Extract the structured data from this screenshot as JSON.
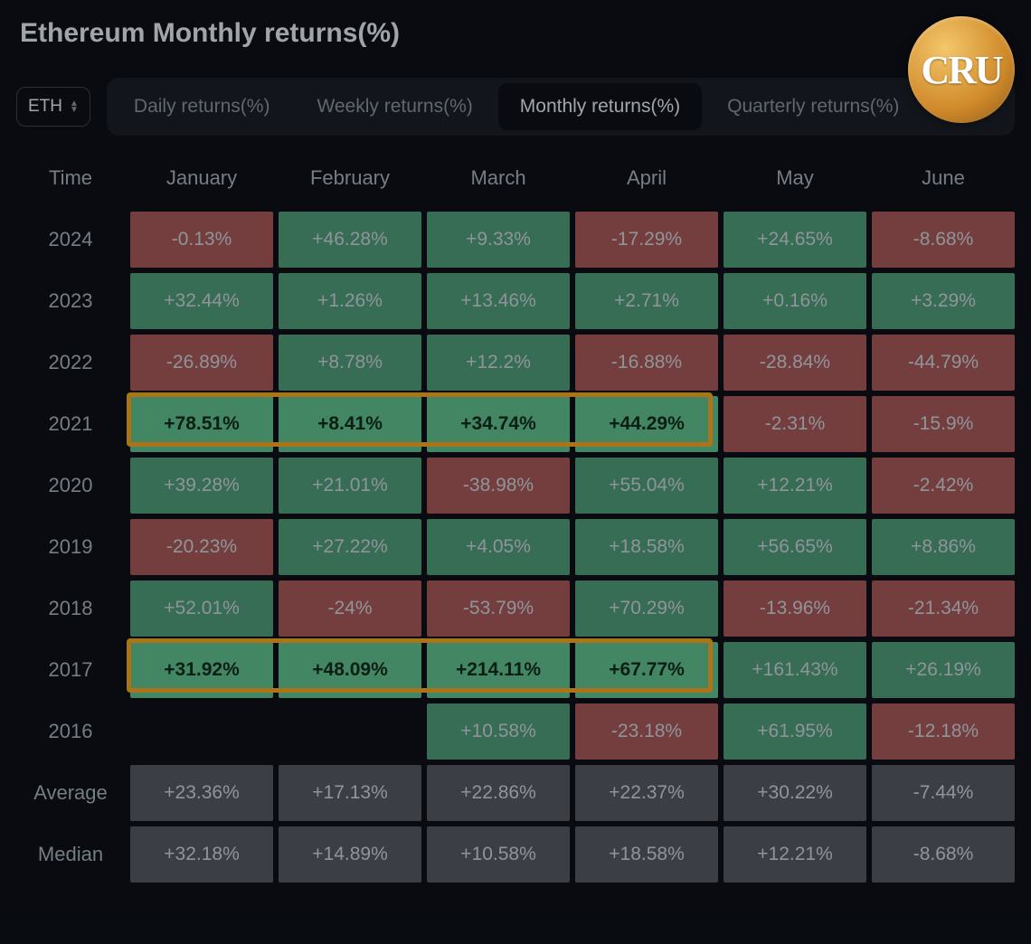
{
  "title": "Ethereum Monthly returns(%)",
  "watermark_text": "CRU",
  "selector": {
    "label": "ETH"
  },
  "tabs": [
    {
      "label": "Daily returns(%)",
      "active": false
    },
    {
      "label": "Weekly returns(%)",
      "active": false
    },
    {
      "label": "Monthly returns(%)",
      "active": true
    },
    {
      "label": "Quarterly returns(%)",
      "active": false
    }
  ],
  "columns": [
    "Time",
    "January",
    "February",
    "March",
    "April",
    "May",
    "June"
  ],
  "colors": {
    "positive_bg": "#4f9b7a",
    "positive_bright_bg": "#5fc08f",
    "negative_bg": "#a85a5a",
    "summary_bg": "#555b63",
    "cell_text_muted": "#cdd5dd",
    "cell_text_bright": "#0f2b1f",
    "highlight_border": "#f5a623",
    "background": "#0d1117"
  },
  "rows": [
    {
      "label": "2024",
      "cells": [
        {
          "text": "-0.13%",
          "bg": "#a85a5a",
          "fg": "#cdd5dd"
        },
        {
          "text": "+46.28%",
          "bg": "#4f9b7a",
          "fg": "#cdd5dd"
        },
        {
          "text": "+9.33%",
          "bg": "#4f9b7a",
          "fg": "#cdd5dd"
        },
        {
          "text": "-17.29%",
          "bg": "#a85a5a",
          "fg": "#cdd5dd"
        },
        {
          "text": "+24.65%",
          "bg": "#4f9b7a",
          "fg": "#cdd5dd"
        },
        {
          "text": "-8.68%",
          "bg": "#a85a5a",
          "fg": "#cdd5dd"
        }
      ]
    },
    {
      "label": "2023",
      "cells": [
        {
          "text": "+32.44%",
          "bg": "#4f9b7a",
          "fg": "#cdd5dd"
        },
        {
          "text": "+1.26%",
          "bg": "#4f9b7a",
          "fg": "#cdd5dd"
        },
        {
          "text": "+13.46%",
          "bg": "#4f9b7a",
          "fg": "#cdd5dd"
        },
        {
          "text": "+2.71%",
          "bg": "#4f9b7a",
          "fg": "#cdd5dd"
        },
        {
          "text": "+0.16%",
          "bg": "#4f9b7a",
          "fg": "#cdd5dd"
        },
        {
          "text": "+3.29%",
          "bg": "#4f9b7a",
          "fg": "#cdd5dd"
        }
      ]
    },
    {
      "label": "2022",
      "cells": [
        {
          "text": "-26.89%",
          "bg": "#a85a5a",
          "fg": "#cdd5dd"
        },
        {
          "text": "+8.78%",
          "bg": "#4f9b7a",
          "fg": "#cdd5dd"
        },
        {
          "text": "+12.2%",
          "bg": "#4f9b7a",
          "fg": "#cdd5dd"
        },
        {
          "text": "-16.88%",
          "bg": "#a85a5a",
          "fg": "#cdd5dd"
        },
        {
          "text": "-28.84%",
          "bg": "#a85a5a",
          "fg": "#cdd5dd"
        },
        {
          "text": "-44.79%",
          "bg": "#a85a5a",
          "fg": "#cdd5dd"
        }
      ]
    },
    {
      "label": "2021",
      "highlighted_cols": [
        0,
        1,
        2,
        3
      ],
      "cells": [
        {
          "text": "+78.51%",
          "bg": "#5fc08f",
          "fg": "#0f2b1f",
          "bold": true
        },
        {
          "text": "+8.41%",
          "bg": "#5fc08f",
          "fg": "#0f2b1f",
          "bold": true
        },
        {
          "text": "+34.74%",
          "bg": "#5fc08f",
          "fg": "#0f2b1f",
          "bold": true
        },
        {
          "text": "+44.29%",
          "bg": "#5fc08f",
          "fg": "#0f2b1f",
          "bold": true
        },
        {
          "text": "-2.31%",
          "bg": "#a85a5a",
          "fg": "#cdd5dd"
        },
        {
          "text": "-15.9%",
          "bg": "#a85a5a",
          "fg": "#cdd5dd"
        }
      ]
    },
    {
      "label": "2020",
      "cells": [
        {
          "text": "+39.28%",
          "bg": "#4f9b7a",
          "fg": "#cdd5dd"
        },
        {
          "text": "+21.01%",
          "bg": "#4f9b7a",
          "fg": "#cdd5dd"
        },
        {
          "text": "-38.98%",
          "bg": "#a85a5a",
          "fg": "#cdd5dd"
        },
        {
          "text": "+55.04%",
          "bg": "#4f9b7a",
          "fg": "#cdd5dd"
        },
        {
          "text": "+12.21%",
          "bg": "#4f9b7a",
          "fg": "#cdd5dd"
        },
        {
          "text": "-2.42%",
          "bg": "#a85a5a",
          "fg": "#cdd5dd"
        }
      ]
    },
    {
      "label": "2019",
      "cells": [
        {
          "text": "-20.23%",
          "bg": "#a85a5a",
          "fg": "#cdd5dd"
        },
        {
          "text": "+27.22%",
          "bg": "#4f9b7a",
          "fg": "#cdd5dd"
        },
        {
          "text": "+4.05%",
          "bg": "#4f9b7a",
          "fg": "#cdd5dd"
        },
        {
          "text": "+18.58%",
          "bg": "#4f9b7a",
          "fg": "#cdd5dd"
        },
        {
          "text": "+56.65%",
          "bg": "#4f9b7a",
          "fg": "#cdd5dd"
        },
        {
          "text": "+8.86%",
          "bg": "#4f9b7a",
          "fg": "#cdd5dd"
        }
      ]
    },
    {
      "label": "2018",
      "cells": [
        {
          "text": "+52.01%",
          "bg": "#4f9b7a",
          "fg": "#cdd5dd"
        },
        {
          "text": "-24%",
          "bg": "#a85a5a",
          "fg": "#cdd5dd"
        },
        {
          "text": "-53.79%",
          "bg": "#a85a5a",
          "fg": "#cdd5dd"
        },
        {
          "text": "+70.29%",
          "bg": "#4f9b7a",
          "fg": "#cdd5dd"
        },
        {
          "text": "-13.96%",
          "bg": "#a85a5a",
          "fg": "#cdd5dd"
        },
        {
          "text": "-21.34%",
          "bg": "#a85a5a",
          "fg": "#cdd5dd"
        }
      ]
    },
    {
      "label": "2017",
      "highlighted_cols": [
        0,
        1,
        2,
        3
      ],
      "cells": [
        {
          "text": "+31.92%",
          "bg": "#5fc08f",
          "fg": "#0f2b1f",
          "bold": true
        },
        {
          "text": "+48.09%",
          "bg": "#5fc08f",
          "fg": "#0f2b1f",
          "bold": true
        },
        {
          "text": "+214.11%",
          "bg": "#5fc08f",
          "fg": "#0f2b1f",
          "bold": true
        },
        {
          "text": "+67.77%",
          "bg": "#5fc08f",
          "fg": "#0f2b1f",
          "bold": true
        },
        {
          "text": "+161.43%",
          "bg": "#4f9b7a",
          "fg": "#cdd5dd"
        },
        {
          "text": "+26.19%",
          "bg": "#4f9b7a",
          "fg": "#cdd5dd"
        }
      ]
    },
    {
      "label": "2016",
      "cells": [
        {
          "text": "",
          "bg": "",
          "fg": ""
        },
        {
          "text": "",
          "bg": "",
          "fg": ""
        },
        {
          "text": "+10.58%",
          "bg": "#4f9b7a",
          "fg": "#cdd5dd"
        },
        {
          "text": "-23.18%",
          "bg": "#a85a5a",
          "fg": "#cdd5dd"
        },
        {
          "text": "+61.95%",
          "bg": "#4f9b7a",
          "fg": "#cdd5dd"
        },
        {
          "text": "-12.18%",
          "bg": "#a85a5a",
          "fg": "#cdd5dd"
        }
      ]
    },
    {
      "label": "Average",
      "cells": [
        {
          "text": "+23.36%",
          "bg": "#555b63",
          "fg": "#cdd5dd"
        },
        {
          "text": "+17.13%",
          "bg": "#555b63",
          "fg": "#cdd5dd"
        },
        {
          "text": "+22.86%",
          "bg": "#555b63",
          "fg": "#cdd5dd"
        },
        {
          "text": "+22.37%",
          "bg": "#555b63",
          "fg": "#cdd5dd"
        },
        {
          "text": "+30.22%",
          "bg": "#555b63",
          "fg": "#cdd5dd"
        },
        {
          "text": "-7.44%",
          "bg": "#555b63",
          "fg": "#cdd5dd"
        }
      ]
    },
    {
      "label": "Median",
      "cells": [
        {
          "text": "+32.18%",
          "bg": "#555b63",
          "fg": "#cdd5dd"
        },
        {
          "text": "+14.89%",
          "bg": "#555b63",
          "fg": "#cdd5dd"
        },
        {
          "text": "+10.58%",
          "bg": "#555b63",
          "fg": "#cdd5dd"
        },
        {
          "text": "+18.58%",
          "bg": "#555b63",
          "fg": "#cdd5dd"
        },
        {
          "text": "+12.21%",
          "bg": "#555b63",
          "fg": "#cdd5dd"
        },
        {
          "text": "-8.68%",
          "bg": "#555b63",
          "fg": "#cdd5dd"
        }
      ]
    }
  ]
}
